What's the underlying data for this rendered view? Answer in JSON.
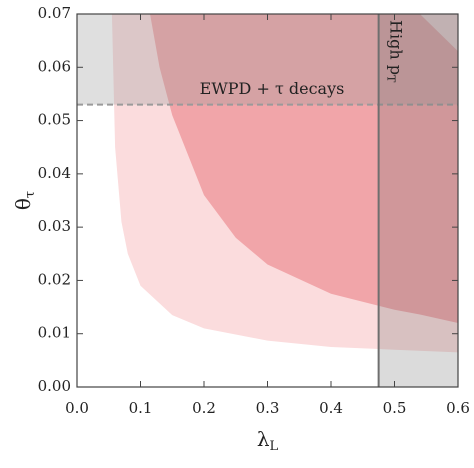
{
  "chart_data": {
    "type": "region",
    "x_label": {
      "symbol": "λ",
      "subscript": "L"
    },
    "y_label": {
      "symbol": "θ",
      "subscript": "τ"
    },
    "xlim": [
      0,
      0.6
    ],
    "ylim": [
      0,
      0.07
    ],
    "xticks": [
      {
        "value": 0,
        "label": "0.0"
      },
      0.1,
      0.2,
      0.3,
      0.4,
      0.5,
      0.6
    ],
    "yticks": [
      {
        "value": 0,
        "label": "0.00"
      },
      0.01,
      0.02,
      0.03,
      0.04,
      0.05,
      0.06,
      0.07
    ],
    "regions": [
      {
        "color": "#fbdcdd",
        "x": [
          0.055,
          0.06,
          0.07,
          0.08,
          0.1,
          0.15,
          0.2,
          0.3,
          0.4,
          0.5,
          0.6
        ],
        "lower": [
          0.07,
          0.045,
          0.031,
          0.025,
          0.019,
          0.0135,
          0.011,
          0.0087,
          0.0075,
          0.007,
          0.0065
        ],
        "upper": [
          0.07,
          0.07,
          0.07,
          0.07,
          0.07,
          0.07,
          0.07,
          0.07,
          0.07,
          0.07,
          0.07
        ]
      },
      {
        "color": "#f1a5a9",
        "x": [
          0.115,
          0.13,
          0.15,
          0.2,
          0.25,
          0.3,
          0.4,
          0.5,
          0.54,
          0.57,
          0.6
        ],
        "lower": [
          0.07,
          0.06,
          0.051,
          0.036,
          0.028,
          0.023,
          0.0175,
          0.0145,
          0.0136,
          0.0128,
          0.012
        ],
        "upper": [
          0.07,
          0.07,
          0.07,
          0.07,
          0.07,
          0.07,
          0.07,
          0.07,
          0.07,
          0.0665,
          0.063
        ]
      }
    ],
    "exclusions": [
      {
        "axis": "y",
        "from": 0.053,
        "color": "#9a9a9a",
        "line": "dashed",
        "label": "EWPD + τ decays"
      },
      {
        "axis": "x",
        "from": 0.475,
        "color": "#6f6f6f",
        "line": "solid",
        "label": {
          "text": "High p",
          "subscript": "T"
        }
      }
    ]
  }
}
